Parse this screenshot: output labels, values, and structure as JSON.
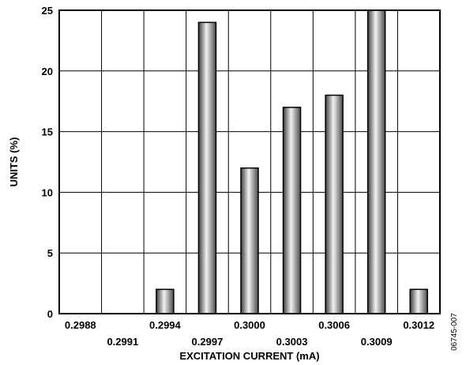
{
  "chart_data": {
    "type": "bar",
    "xlabel": "EXCITATION CURRENT (mA)",
    "ylabel": "UNITS (%)",
    "ylim": [
      0,
      25
    ],
    "yticks": [
      "0",
      "5",
      "10",
      "15",
      "20",
      "25"
    ],
    "categories": [
      "0.2988",
      "0.2991",
      "0.2994",
      "0.2997",
      "0.3000",
      "0.3003",
      "0.3006",
      "0.3009",
      "0.3012"
    ],
    "values": [
      0,
      0,
      2,
      24,
      12,
      17,
      18,
      25,
      2
    ],
    "grid": true,
    "bar_color": "#8a8a8a"
  },
  "figure_code": "06745-007"
}
